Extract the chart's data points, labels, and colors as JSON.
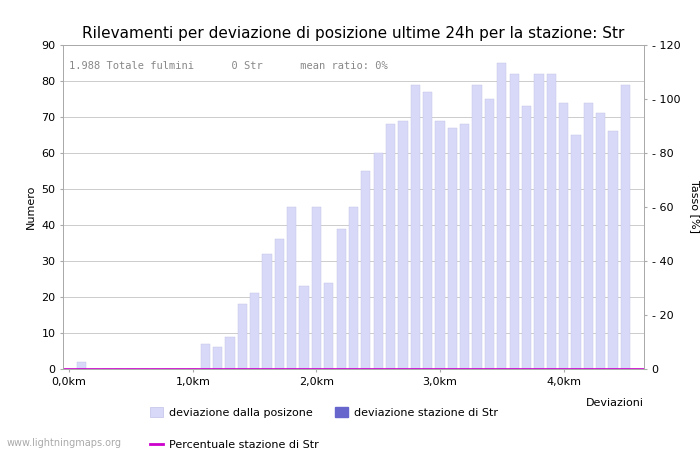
{
  "title": "Rilevamenti per deviazione di posizione ultime 24h per la stazione: Str",
  "annotation": "1.988 Totale fulmini      0 Str      mean ratio: 0%",
  "xlabel": "Deviazioni",
  "ylabel_left": "Numero",
  "ylabel_right": "Tasso [%]",
  "watermark": "www.lightningmaps.org",
  "bar_positions": [
    0.1,
    0.2,
    0.3,
    0.4,
    0.5,
    0.6,
    0.7,
    0.8,
    0.9,
    1.0,
    1.1,
    1.2,
    1.3,
    1.4,
    1.5,
    1.6,
    1.7,
    1.8,
    1.9,
    2.0,
    2.1,
    2.2,
    2.3,
    2.4,
    2.5,
    2.6,
    2.7,
    2.8,
    2.9,
    3.0,
    3.1,
    3.2,
    3.3,
    3.4,
    3.5,
    3.6,
    3.7,
    3.8,
    3.9,
    4.0,
    4.1,
    4.2,
    4.3,
    4.4,
    4.5
  ],
  "bar_values": [
    2,
    0,
    0,
    0,
    0,
    0,
    0,
    0,
    0,
    0,
    7,
    6,
    9,
    18,
    21,
    32,
    36,
    45,
    23,
    45,
    24,
    39,
    45,
    55,
    60,
    68,
    69,
    79,
    77,
    69,
    67,
    68,
    79,
    75,
    85,
    82,
    73,
    82,
    82,
    74,
    65,
    74,
    71,
    66,
    79
  ],
  "bar_color_light": "#d8d8f8",
  "bar_color_dark": "#6666cc",
  "bar_edge_color": "#c0c0e8",
  "line_color": "#cc00cc",
  "xtick_positions": [
    0.0,
    1.0,
    2.0,
    3.0,
    4.0
  ],
  "xtick_labels": [
    "0,0km",
    "1,0km",
    "2,0km",
    "3,0km",
    "4,0km"
  ],
  "ytick_left": [
    0,
    10,
    20,
    30,
    40,
    50,
    60,
    70,
    80,
    90
  ],
  "ytick_right_vals": [
    0,
    20,
    40,
    60,
    80,
    100,
    120
  ],
  "ytick_right_labels": [
    "0",
    "- 20",
    "- 40",
    "- 60",
    "- 80",
    "- 100",
    "- 120"
  ],
  "ylim_left": [
    0,
    90
  ],
  "ylim_right": [
    0,
    120
  ],
  "xlim": [
    -0.05,
    4.65
  ],
  "bar_width": 0.075,
  "legend_items": [
    {
      "label": "deviazione dalla posizone",
      "color": "#d8d8f8",
      "type": "bar"
    },
    {
      "label": "deviazione stazione di Str",
      "color": "#6666cc",
      "type": "bar"
    },
    {
      "label": "Percentuale stazione di Str",
      "color": "#cc00cc",
      "type": "line"
    }
  ],
  "grid_color": "#cccccc",
  "background_color": "#ffffff",
  "title_fontsize": 11,
  "axis_fontsize": 8,
  "tick_fontsize": 8,
  "annotation_color": "#888888"
}
